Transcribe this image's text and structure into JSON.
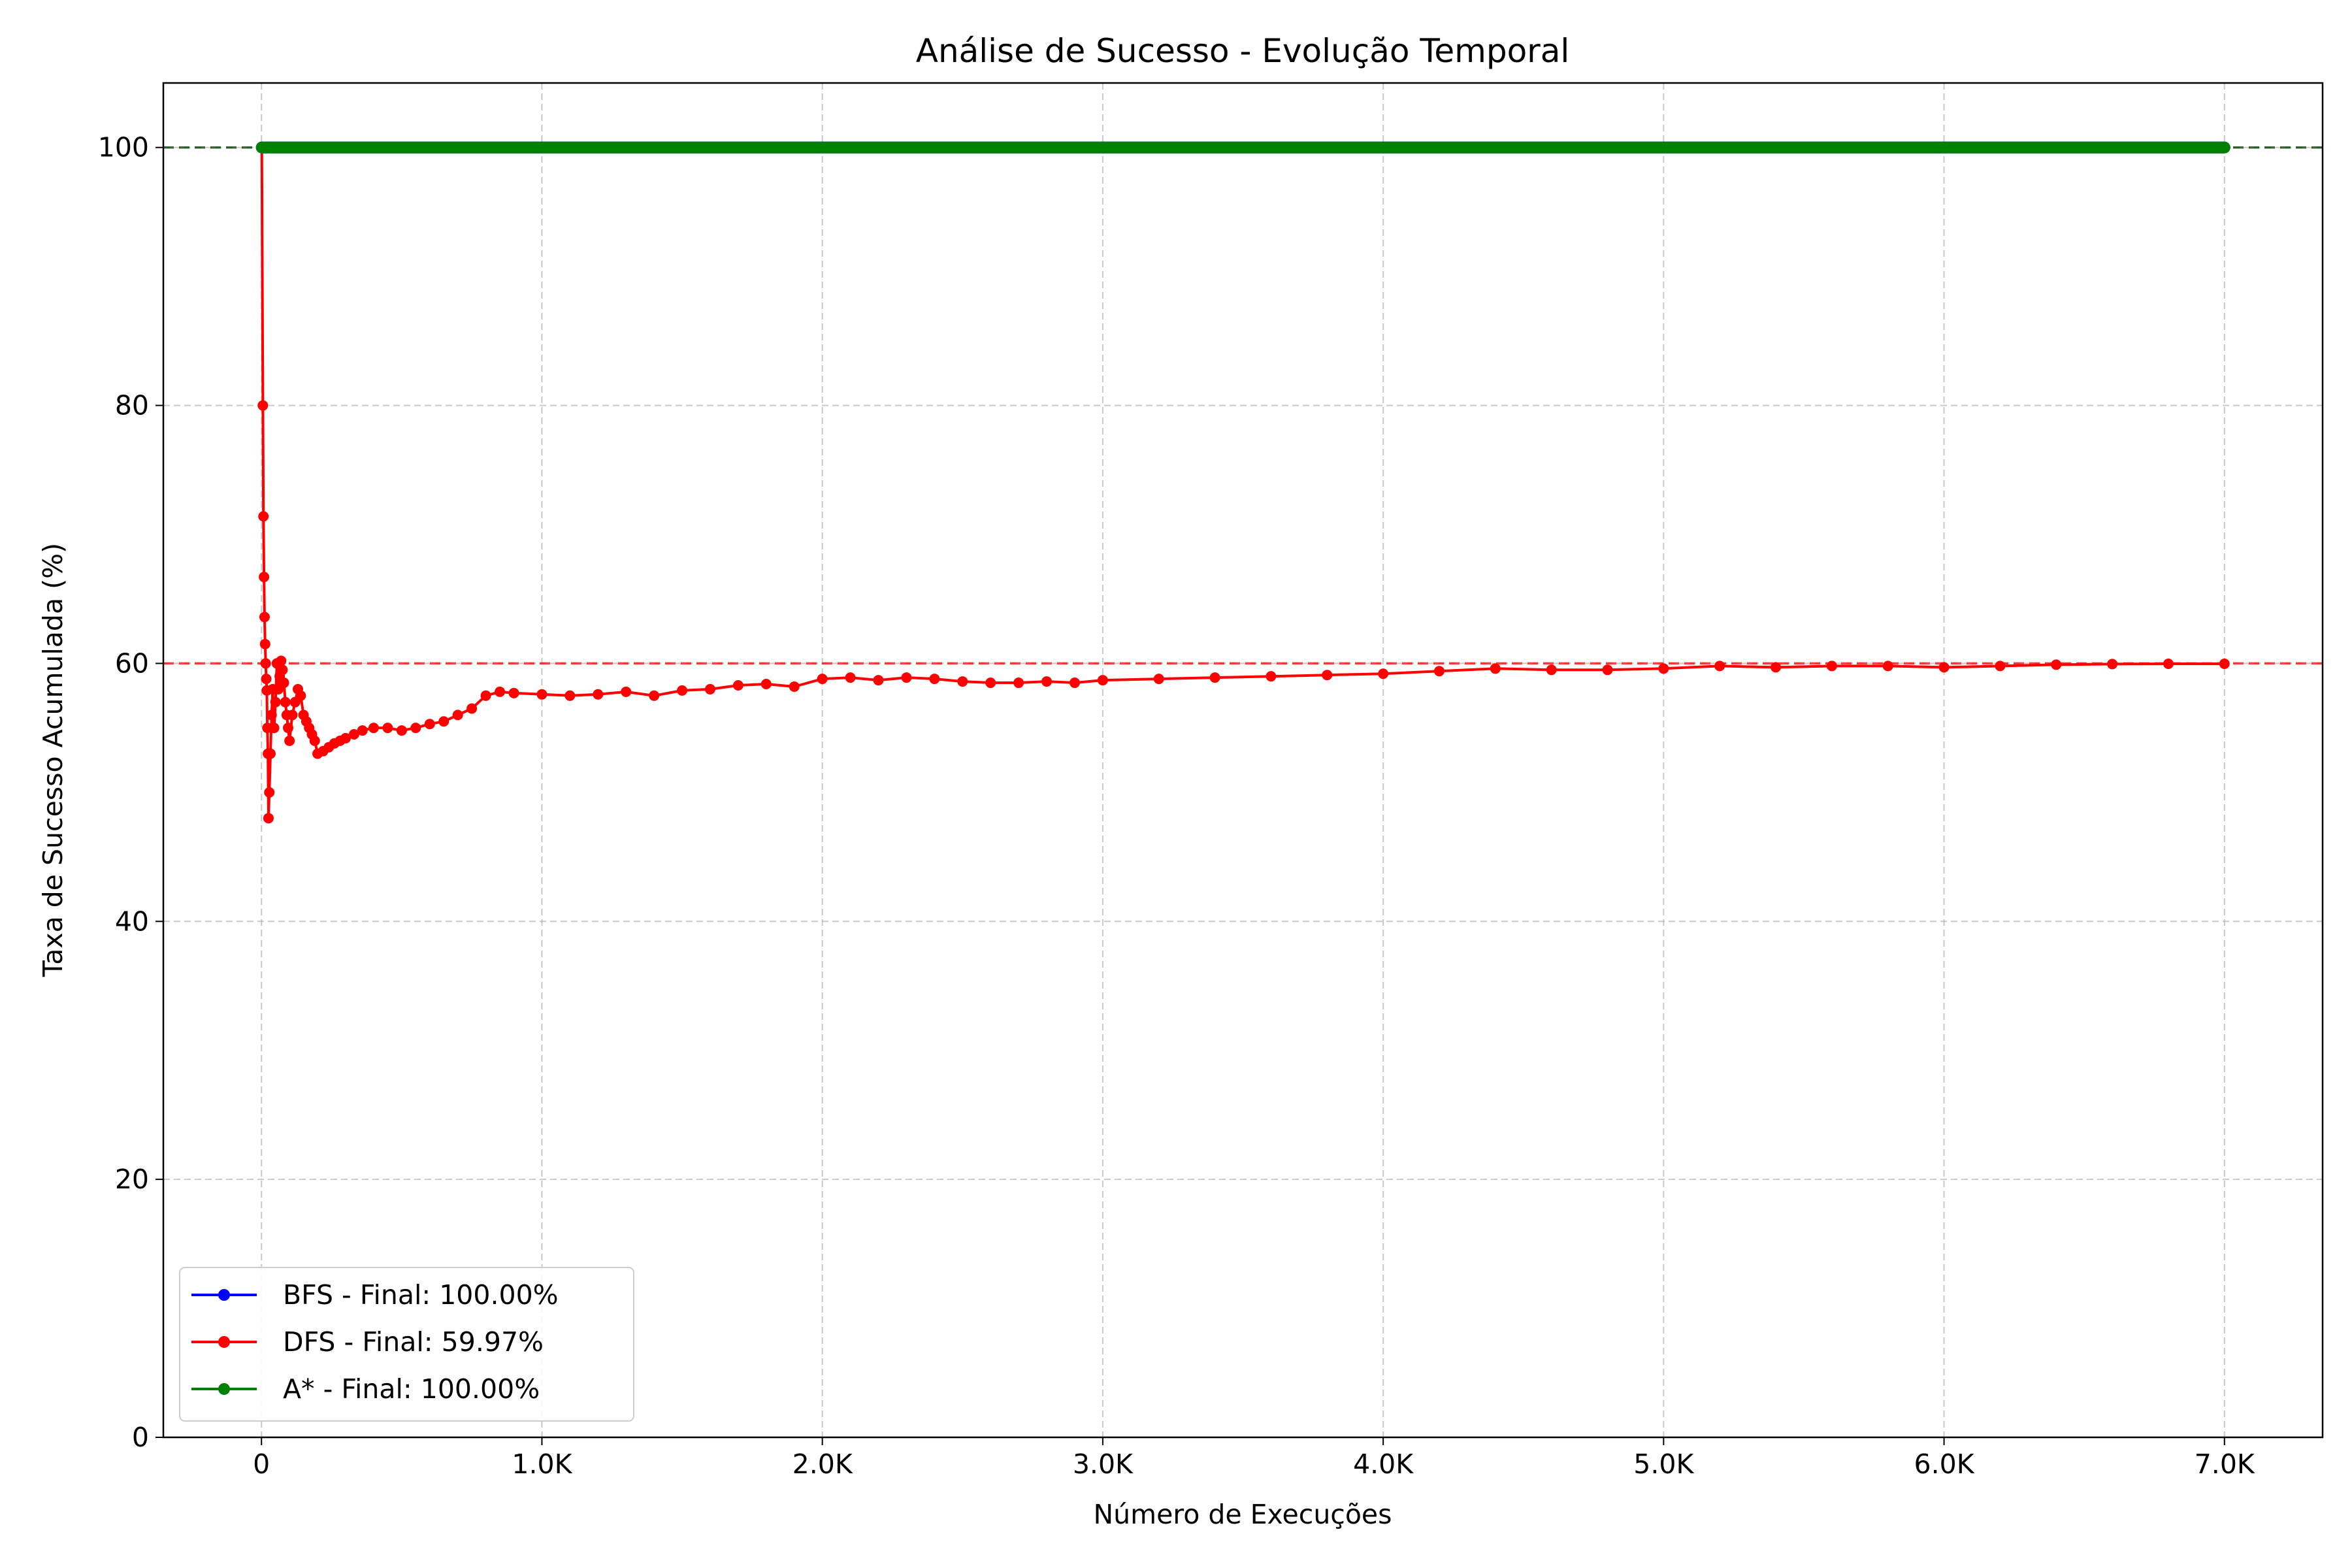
{
  "chart_data": {
    "type": "line",
    "title": "Análise de Sucesso - Evolução Temporal",
    "xlabel": "Número de Execuções",
    "ylabel": "Taxa de Sucesso Acumulada (%)",
    "xlim": [
      -350,
      7350
    ],
    "ylim": [
      0,
      105
    ],
    "xticks": [
      {
        "value": 0,
        "label": "0"
      },
      {
        "value": 1000,
        "label": "1.0K"
      },
      {
        "value": 2000,
        "label": "2.0K"
      },
      {
        "value": 3000,
        "label": "3.0K"
      },
      {
        "value": 4000,
        "label": "4.0K"
      },
      {
        "value": 5000,
        "label": "5.0K"
      },
      {
        "value": 6000,
        "label": "6.0K"
      },
      {
        "value": 7000,
        "label": "7.0K"
      }
    ],
    "yticks": [
      {
        "value": 0,
        "label": "0"
      },
      {
        "value": 20,
        "label": "20"
      },
      {
        "value": 40,
        "label": "40"
      },
      {
        "value": 60,
        "label": "60"
      },
      {
        "value": 80,
        "label": "80"
      },
      {
        "value": 100,
        "label": "100"
      }
    ],
    "grid": true,
    "legend_position": "lower-left",
    "series": [
      {
        "name": "BFS - Final: 100.00%",
        "color": "#0000ff",
        "x": [
          1,
          7000
        ],
        "y": [
          100,
          100
        ]
      },
      {
        "name": "DFS - Final: 59.97%",
        "color": "#ff0000",
        "x": [
          1,
          5,
          7,
          9,
          11,
          13,
          15,
          17,
          19,
          21,
          23,
          25,
          28,
          32,
          36,
          40,
          45,
          50,
          55,
          60,
          65,
          70,
          75,
          80,
          85,
          90,
          95,
          100,
          110,
          120,
          130,
          140,
          150,
          160,
          170,
          180,
          190,
          200,
          220,
          240,
          260,
          280,
          300,
          330,
          360,
          400,
          450,
          500,
          550,
          600,
          650,
          700,
          750,
          800,
          850,
          900,
          1000,
          1100,
          1200,
          1300,
          1400,
          1500,
          1600,
          1700,
          1800,
          1900,
          2000,
          2100,
          2200,
          2300,
          2400,
          2500,
          2600,
          2700,
          2800,
          2900,
          3000,
          3200,
          3400,
          3600,
          3800,
          4000,
          4200,
          4400,
          4600,
          4800,
          5000,
          5200,
          5400,
          5600,
          5800,
          6000,
          6200,
          6400,
          6600,
          6800,
          7000
        ],
        "y": [
          100,
          80,
          71.4,
          66.7,
          63.6,
          61.5,
          60,
          58.8,
          57.9,
          55,
          53,
          48,
          50,
          53,
          56,
          58,
          55,
          57,
          60,
          58,
          59,
          60.2,
          59.5,
          58.5,
          57,
          56,
          55,
          54,
          56,
          57,
          58,
          57.5,
          56,
          55.5,
          55,
          54.5,
          54,
          53,
          53.2,
          53.5,
          53.8,
          54,
          54.2,
          54.5,
          54.8,
          55,
          55,
          54.8,
          55,
          55.3,
          55.5,
          56,
          56.5,
          57.5,
          57.8,
          57.7,
          57.6,
          57.5,
          57.6,
          57.8,
          57.5,
          57.9,
          58,
          58.3,
          58.4,
          58.2,
          58.8,
          58.9,
          58.7,
          58.9,
          58.8,
          58.6,
          58.5,
          58.5,
          58.6,
          58.5,
          58.7,
          58.8,
          58.9,
          59,
          59.1,
          59.2,
          59.4,
          59.6,
          59.5,
          59.5,
          59.6,
          59.8,
          59.7,
          59.8,
          59.8,
          59.7,
          59.8,
          59.9,
          59.95,
          59.97,
          59.97
        ]
      },
      {
        "name": "A* - Final: 100.00%",
        "color": "#008000",
        "x": [
          1,
          7000
        ],
        "y": [
          100,
          100
        ]
      }
    ],
    "reference_lines": [
      {
        "y": 100,
        "color": "#003300",
        "style": "dashed"
      },
      {
        "y": 60,
        "color": "#ff0000",
        "style": "dashed"
      }
    ]
  }
}
